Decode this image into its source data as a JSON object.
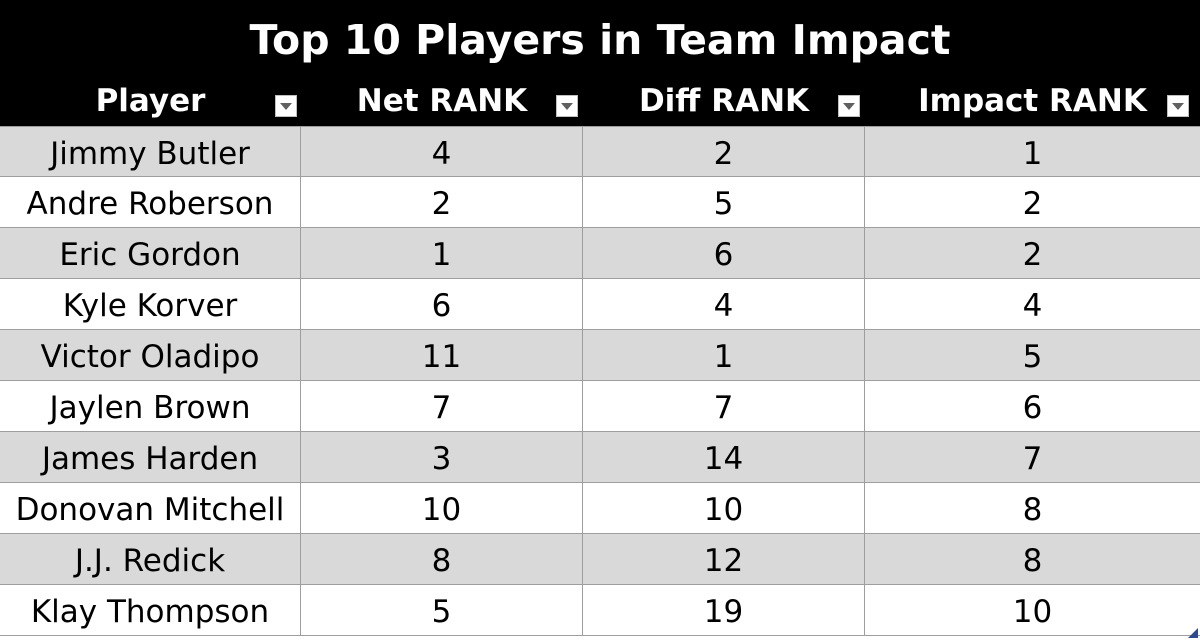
{
  "title": "Top 10 Players in Team Impact",
  "columns": [
    {
      "label": "Player"
    },
    {
      "label": "Net RANK"
    },
    {
      "label": "Diff RANK"
    },
    {
      "label": "Impact RANK"
    }
  ],
  "rows": [
    {
      "player": "Jimmy Butler",
      "net_rank": "4",
      "diff_rank": "2",
      "impact_rank": "1"
    },
    {
      "player": "Andre Roberson",
      "net_rank": "2",
      "diff_rank": "5",
      "impact_rank": "2"
    },
    {
      "player": "Eric Gordon",
      "net_rank": "1",
      "diff_rank": "6",
      "impact_rank": "2"
    },
    {
      "player": "Kyle Korver",
      "net_rank": "6",
      "diff_rank": "4",
      "impact_rank": "4"
    },
    {
      "player": "Victor Oladipo",
      "net_rank": "11",
      "diff_rank": "1",
      "impact_rank": "5"
    },
    {
      "player": "Jaylen Brown",
      "net_rank": "7",
      "diff_rank": "7",
      "impact_rank": "6"
    },
    {
      "player": "James Harden",
      "net_rank": "3",
      "diff_rank": "14",
      "impact_rank": "7"
    },
    {
      "player": "Donovan Mitchell",
      "net_rank": "10",
      "diff_rank": "10",
      "impact_rank": "8"
    },
    {
      "player": "J.J. Redick",
      "net_rank": "8",
      "diff_rank": "12",
      "impact_rank": "8"
    },
    {
      "player": "Klay Thompson",
      "net_rank": "5",
      "diff_rank": "19",
      "impact_rank": "10"
    }
  ],
  "colors": {
    "header_bg": "#000000",
    "header_text": "#ffffff",
    "band_row_bg": "#d9d9d9",
    "plain_row_bg": "#ffffff",
    "grid_line": "#9e9e9e"
  },
  "icons": {
    "filter": "chevron-down-icon"
  }
}
